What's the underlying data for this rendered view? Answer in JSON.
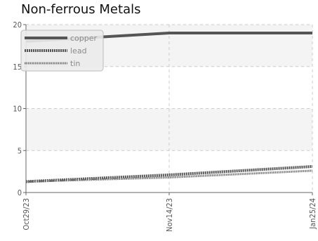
{
  "chart_data": {
    "type": "line",
    "title": "Non-ferrous Metals",
    "x": [
      "Oct29/23",
      "Nov14/23",
      "Jan25/24"
    ],
    "x_ticks": [
      "Oct29/23",
      "Nov14/23",
      "Jan25/24"
    ],
    "ylim": [
      0,
      20
    ],
    "y_ticks": [
      "0",
      "5",
      "10",
      "15",
      "20"
    ],
    "grid": true,
    "legend_placement": "top-left",
    "series": [
      {
        "name": "copper",
        "values": [
          18.0,
          19.0,
          19.0
        ],
        "color": "#555555"
      },
      {
        "name": "lead",
        "values": [
          1.3,
          2.1,
          3.1
        ],
        "color": "#555555"
      },
      {
        "name": "tin",
        "values": [
          1.3,
          1.8,
          2.6
        ],
        "color": "#777777"
      }
    ]
  }
}
